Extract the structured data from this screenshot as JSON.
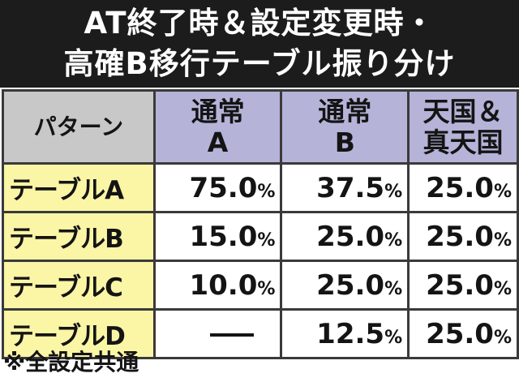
{
  "title": {
    "line1": "AT終了時＆設定変更時・",
    "line2": "高確B移行テーブル振り分け"
  },
  "table": {
    "headers": {
      "pattern": "パターン",
      "col1_line1": "通常",
      "col1_line2": "A",
      "col2_line1": "通常",
      "col2_line2": "B",
      "col3_line1": "天国＆",
      "col3_line2": "真天国"
    },
    "rows": [
      {
        "label": "テーブルA",
        "normal_a": "75.0",
        "normal_b": "37.5",
        "tengoku": "25.0"
      },
      {
        "label": "テーブルB",
        "normal_a": "15.0",
        "normal_b": "25.0",
        "tengoku": "25.0"
      },
      {
        "label": "テーブルC",
        "normal_a": "10.0",
        "normal_b": "25.0",
        "tengoku": "25.0"
      },
      {
        "label": "テーブルD",
        "normal_a": "—",
        "normal_b": "12.5",
        "tengoku": "25.0"
      }
    ],
    "percent_sign": "%"
  },
  "note": "※全設定共通",
  "colors": {
    "title_bg": "#1c1c1c",
    "header_bg": "#b5b3d8",
    "pattern_header_bg": "#c8c8c8",
    "row_label_bg": "#fbf5a6"
  }
}
